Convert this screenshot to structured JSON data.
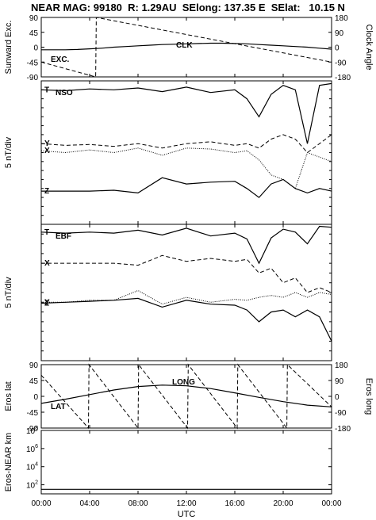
{
  "title": "NEAR MAG: 99180  R: 1.29AU  SElong: 137.35 E  SElat:   10.15 N",
  "chart_data": {
    "type": "line",
    "x_axis": {
      "label": "UTC",
      "tick_labels": [
        "00:00",
        "04:00",
        "08:00",
        "12:00",
        "16:00",
        "20:00",
        "00:00"
      ],
      "range_hours": [
        0,
        24
      ]
    },
    "panels": [
      {
        "id": "angles",
        "left_ylabel": "Sunward Exc.",
        "right_ylabel": "Clock Angle",
        "left_ticks": [
          "90",
          "45",
          "0",
          "-45",
          "-90"
        ],
        "right_ticks": [
          "180",
          "90",
          "0",
          "-90",
          "-180"
        ],
        "ylim": [
          -90,
          90
        ],
        "labels": [
          "EXC.",
          "CLK"
        ],
        "series": [
          {
            "name": "EXC.",
            "style": "solid",
            "x": [
              0,
              1,
              2,
              3,
              4,
              5,
              6,
              7,
              8,
              9,
              10,
              11,
              12,
              13,
              14,
              15,
              16,
              17,
              18,
              19,
              20,
              21,
              22,
              23,
              24
            ],
            "y": [
              -8,
              -8,
              -8,
              -7,
              -5,
              -3,
              0,
              2,
              4,
              6,
              8,
              9,
              10,
              11,
              12,
              12,
              11,
              10,
              8,
              6,
              4,
              2,
              0,
              -3,
              -6
            ]
          },
          {
            "name": "CLK",
            "style": "dashed",
            "x": [
              0,
              4.5,
              4.55,
              24
            ],
            "y": [
              -45,
              -90,
              90,
              -45
            ]
          }
        ]
      },
      {
        "id": "nso",
        "label": "NSO",
        "left_ylabel": "5 nT/div",
        "series_labels": [
          "T",
          "Y",
          "X",
          "Z"
        ],
        "series": [
          {
            "name": "T",
            "style": "solid",
            "x": [
              0,
              2,
              4,
              6,
              8,
              10,
              12,
              14,
              16,
              17,
              18,
              19,
              20,
              21,
              22,
              23,
              24
            ],
            "y": [
              -1.0,
              -1.1,
              -0.9,
              -1.0,
              -0.8,
              -1.2,
              -0.7,
              -1.3,
              -1.0,
              -2.0,
              -4.0,
              -1.5,
              -0.5,
              -1.0,
              -7.0,
              -0.5,
              -0.3
            ]
          },
          {
            "name": "Y",
            "style": "dashed",
            "x": [
              0,
              2,
              4,
              6,
              8,
              10,
              12,
              14,
              16,
              17,
              18,
              19,
              20,
              21,
              22,
              23,
              24
            ],
            "y": [
              -7.0,
              -7.2,
              -7.1,
              -7.3,
              -7.0,
              -7.5,
              -7.0,
              -6.8,
              -7.2,
              -7.0,
              -7.5,
              -6.5,
              -6.0,
              -6.5,
              -8.0,
              -7.0,
              -6.0
            ]
          },
          {
            "name": "X",
            "style": "dotted",
            "x": [
              0,
              2,
              4,
              6,
              8,
              10,
              12,
              14,
              16,
              17,
              18,
              19,
              20,
              21,
              22,
              23,
              24
            ],
            "y": [
              -7.8,
              -8.0,
              -7.7,
              -8.0,
              -7.5,
              -8.3,
              -7.5,
              -7.6,
              -8.0,
              -7.8,
              -8.8,
              -10.5,
              -11.0,
              -12.0,
              -8.0,
              -8.5,
              -9.0
            ]
          },
          {
            "name": "Z",
            "style": "solid",
            "x": [
              0,
              2,
              4,
              6,
              8,
              10,
              12,
              14,
              16,
              17,
              18,
              19,
              20,
              21,
              22,
              23,
              24
            ],
            "y": [
              -12.3,
              -12.3,
              -12.3,
              -12.2,
              -12.5,
              -10.8,
              -11.5,
              -11.3,
              -11.2,
              -12.0,
              -13.0,
              -11.5,
              -11.0,
              -12.0,
              -12.5,
              -12.0,
              -12.3
            ]
          }
        ]
      },
      {
        "id": "ebf",
        "label": "EBF",
        "left_ylabel": "5 nT/div",
        "series_labels": [
          "T",
          "X",
          "Y",
          "Z"
        ],
        "series": [
          {
            "name": "T",
            "style": "solid",
            "x": [
              0,
              2,
              4,
              6,
              8,
              10,
              12,
              14,
              16,
              17,
              18,
              19,
              20,
              21,
              22,
              23,
              24
            ],
            "y": [
              -0.8,
              -0.9,
              -0.8,
              -0.9,
              -0.6,
              -1.1,
              -0.4,
              -1.2,
              -0.9,
              -1.5,
              -4.0,
              -1.4,
              -0.5,
              -0.8,
              -2.0,
              -0.2,
              -0.3
            ]
          },
          {
            "name": "X",
            "style": "dashed",
            "x": [
              0,
              2,
              4,
              6,
              8,
              10,
              12,
              14,
              16,
              17,
              18,
              19,
              20,
              21,
              22,
              23,
              24
            ],
            "y": [
              -4.0,
              -4.0,
              -4.0,
              -4.0,
              -4.2,
              -3.2,
              -3.8,
              -3.5,
              -3.8,
              -3.6,
              -5.0,
              -4.5,
              -6.0,
              -5.5,
              -7.0,
              -6.5,
              -7.0
            ]
          },
          {
            "name": "Y",
            "style": "dotted",
            "x": [
              0,
              2,
              4,
              6,
              8,
              10,
              12,
              14,
              16,
              17,
              18,
              19,
              20,
              21,
              22,
              23,
              24
            ],
            "y": [
              -8.0,
              -8.0,
              -7.8,
              -7.8,
              -6.8,
              -8.2,
              -7.5,
              -8.0,
              -7.7,
              -7.8,
              -7.5,
              -7.3,
              -7.5,
              -7.0,
              -7.5,
              -7.0,
              -7.2
            ]
          },
          {
            "name": "Z",
            "style": "solid",
            "x": [
              0,
              2,
              4,
              6,
              8,
              10,
              12,
              14,
              16,
              17,
              18,
              19,
              20,
              21,
              22,
              23,
              24
            ],
            "y": [
              -8.1,
              -8.0,
              -7.9,
              -7.8,
              -7.6,
              -8.5,
              -7.8,
              -8.2,
              -8.3,
              -8.8,
              -10.0,
              -9.0,
              -8.8,
              -9.5,
              -8.8,
              -9.5,
              -12.0
            ]
          }
        ]
      },
      {
        "id": "eros-angles",
        "left_ylabel": "Eros lat",
        "right_ylabel": "Eros long",
        "left_ticks": [
          "90",
          "45",
          "0",
          "-45",
          "-90"
        ],
        "right_ticks": [
          "180",
          "90",
          "0",
          "-90",
          "-180"
        ],
        "ylim": [
          -90,
          90
        ],
        "labels": [
          "LONG",
          "LAT"
        ],
        "series": [
          {
            "name": "LAT",
            "style": "solid",
            "x": [
              0,
              2,
              4,
              6,
              8,
              10,
              12,
              14,
              16,
              18,
              20,
              22,
              24
            ],
            "y": [
              -20,
              -8,
              5,
              18,
              28,
              32,
              30,
              22,
              10,
              -3,
              -15,
              -25,
              -30
            ]
          },
          {
            "name": "LONG",
            "style": "dashed",
            "x": [
              0,
              3.9,
              3.95,
              8.0,
              8.05,
              12.1,
              12.15,
              16.2,
              16.25,
              20.3,
              20.35,
              24
            ],
            "y": [
              60,
              -90,
              90,
              -90,
              90,
              -90,
              90,
              -90,
              90,
              -90,
              90,
              -30
            ]
          }
        ]
      },
      {
        "id": "eros-near",
        "left_ylabel": "Eros-NEAR km",
        "left_ticks": [
          "10^8",
          "10^6",
          "10^4",
          "10^2"
        ],
        "scale": "log",
        "ylim_log10": [
          1,
          8
        ],
        "series": [
          {
            "name": "dist",
            "style": "solid",
            "x": [
              0,
              24
            ],
            "y": [
              1.5,
              1.5
            ]
          }
        ]
      }
    ]
  }
}
